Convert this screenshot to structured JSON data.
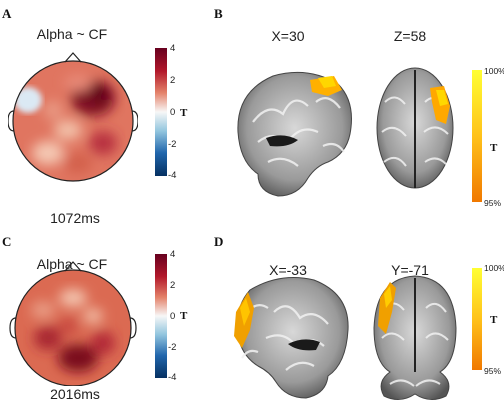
{
  "panels": {
    "A": {
      "letter": "A",
      "title": "Alpha ~ CF",
      "time": "1072ms",
      "colorbar": {
        "ticks": [
          "4",
          "2",
          "0",
          "-2",
          "-4"
        ],
        "label": "T"
      }
    },
    "B": {
      "letter": "B",
      "views": [
        "X=30",
        "Z=58"
      ],
      "scale": {
        "top": "100%",
        "bottom": "95%",
        "label": "T"
      }
    },
    "C": {
      "letter": "C",
      "title": "Alpha ~ CF",
      "time": "2016ms",
      "colorbar": {
        "ticks": [
          "4",
          "2",
          "0",
          "-2",
          "-4"
        ],
        "label": "T"
      }
    },
    "D": {
      "letter": "D",
      "views": [
        "X=-33",
        "Y=-71"
      ],
      "scale": {
        "top": "100%",
        "bottom": "95%",
        "label": "T"
      }
    }
  },
  "colors": {
    "topo_red": "#c0392b",
    "topo_blue": "#9ec9e6",
    "activation_yellow": "#ffd51a",
    "activation_orange": "#f08c00",
    "cb_dark_red": "#67001f",
    "cb_dark_blue": "#053061"
  }
}
